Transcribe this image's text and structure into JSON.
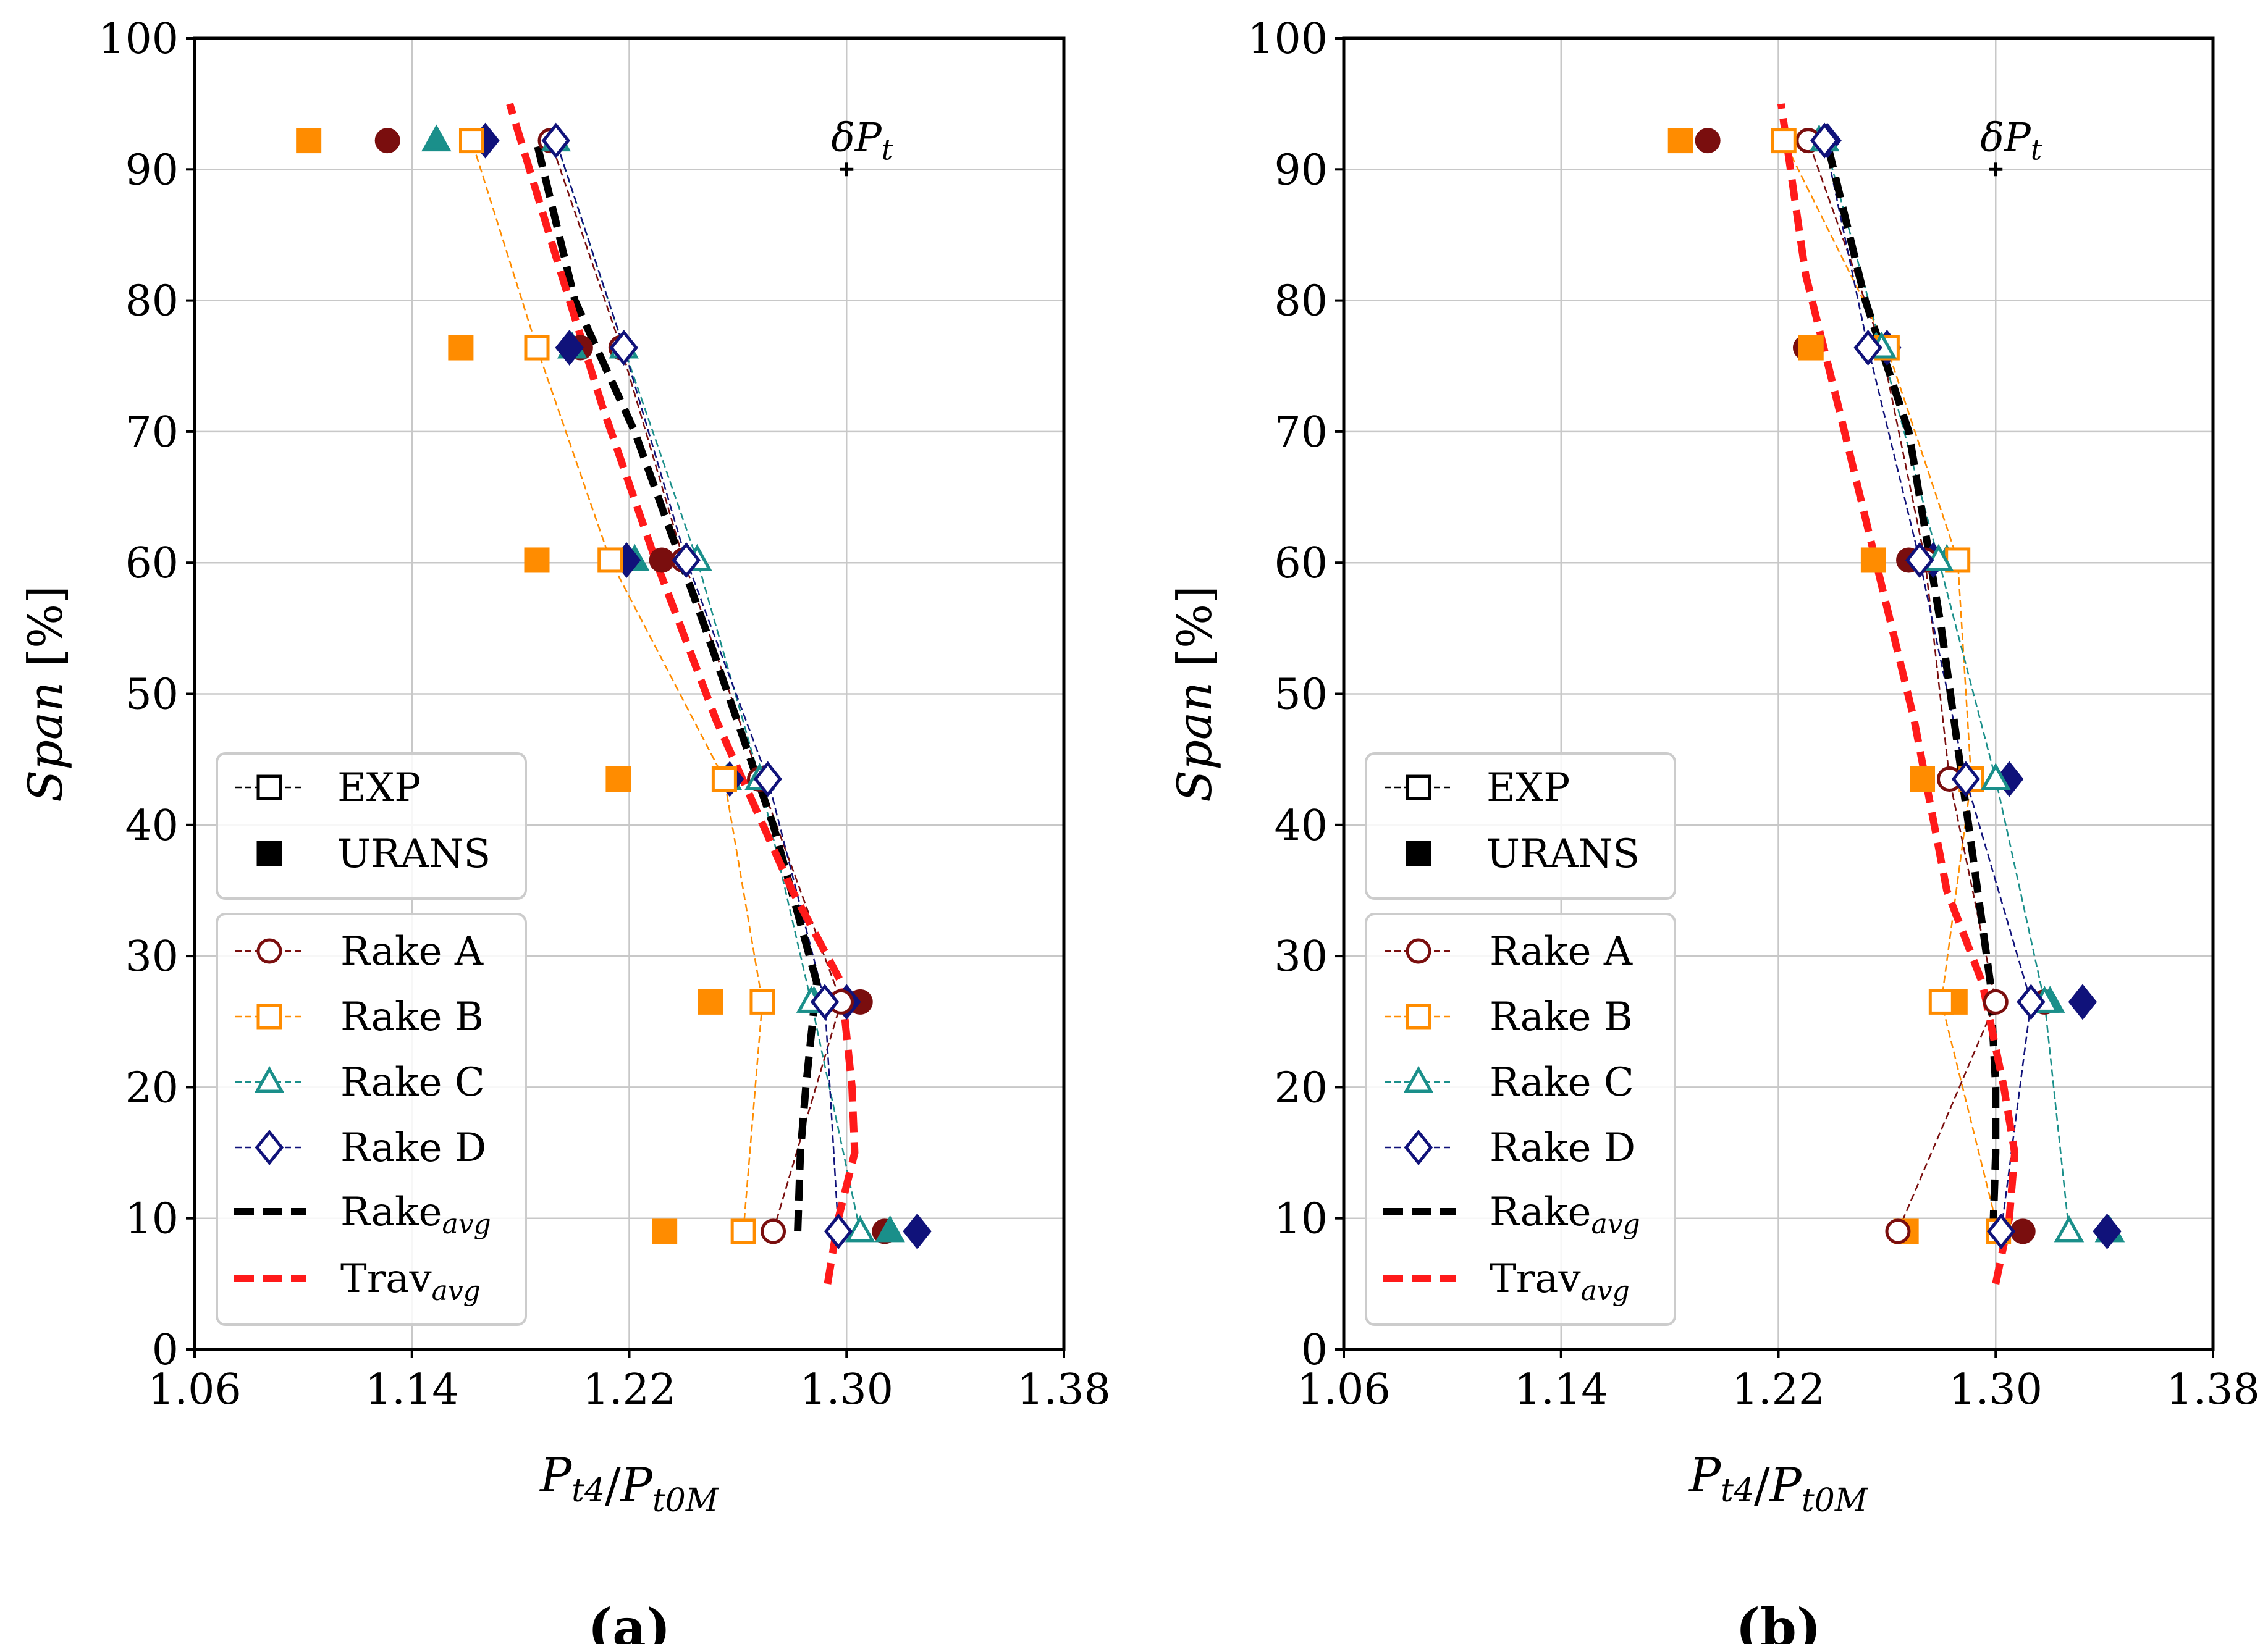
{
  "chart_data": [
    {
      "type": "scatter",
      "panel_label": "(a)",
      "xlabel": "P_t4/P_t0M",
      "ylabel": "Span [%]",
      "xlim": [
        1.06,
        1.38
      ],
      "ylim": [
        0,
        100
      ],
      "xticks": [
        1.06,
        1.14,
        1.22,
        1.3,
        1.38
      ],
      "xtick_labels": [
        "1.06",
        "1.14",
        "1.22",
        "1.30",
        "1.38"
      ],
      "yticks": [
        0,
        10,
        20,
        30,
        40,
        50,
        60,
        70,
        80,
        90,
        100
      ],
      "ytick_labels": [
        "0",
        "10",
        "20",
        "30",
        "40",
        "50",
        "60",
        "70",
        "80",
        "90",
        "100"
      ],
      "grid": true,
      "annotation": {
        "text": "δP_t",
        "x": 1.3,
        "y": 90
      },
      "spans": [
        9,
        26.5,
        43.5,
        60.2,
        76.4,
        92.2
      ],
      "exp": {
        "Rake A": [
          1.273,
          1.298,
          1.268,
          1.24,
          1.217,
          1.191
        ],
        "Rake B": [
          1.262,
          1.269,
          1.255,
          1.213,
          1.186,
          1.162
        ],
        "Rake C": [
          1.305,
          1.287,
          1.268,
          1.245,
          1.218,
          1.193
        ],
        "Rake D": [
          1.297,
          1.292,
          1.271,
          1.241,
          1.218,
          1.193
        ]
      },
      "urans": {
        "Rake A": [
          1.314,
          1.305,
          1.27,
          1.232,
          1.202,
          1.131
        ],
        "Rake B": [
          1.233,
          1.25,
          1.216,
          1.186,
          1.158,
          1.102
        ],
        "Rake C": [
          1.316,
          1.288,
          1.256,
          1.222,
          1.199,
          1.149
        ],
        "Rake D": [
          1.326,
          1.3,
          1.257,
          1.219,
          1.198,
          1.167
        ]
      },
      "rake_avg": {
        "x": [
          1.282,
          1.283,
          1.285,
          1.289,
          1.273,
          1.248,
          1.222,
          1.2,
          1.186
        ],
        "y": [
          9,
          15,
          20,
          28,
          40,
          55,
          70,
          80,
          92
        ]
      },
      "trav_avg": {
        "x": [
          1.293,
          1.297,
          1.303,
          1.302,
          1.298,
          1.28,
          1.252,
          1.23,
          1.21,
          1.195,
          1.176
        ],
        "y": [
          5,
          10,
          15,
          20,
          28,
          35,
          48,
          60,
          72,
          82,
          95
        ]
      },
      "legend_markers": [
        "EXP",
        "URANS"
      ],
      "legend_series": [
        "Rake A",
        "Rake B",
        "Rake C",
        "Rake D",
        "Rake",
        "Trav"
      ],
      "legend_subscript": "avg"
    },
    {
      "type": "scatter",
      "panel_label": "(b)",
      "xlabel": "P_t4/P_t0M",
      "ylabel": "Span [%]",
      "xlim": [
        1.06,
        1.38
      ],
      "ylim": [
        0,
        100
      ],
      "xticks": [
        1.06,
        1.14,
        1.22,
        1.3,
        1.38
      ],
      "xtick_labels": [
        "1.06",
        "1.14",
        "1.22",
        "1.30",
        "1.38"
      ],
      "yticks": [
        0,
        10,
        20,
        30,
        40,
        50,
        60,
        70,
        80,
        90,
        100
      ],
      "ytick_labels": [
        "0",
        "10",
        "20",
        "30",
        "40",
        "50",
        "60",
        "70",
        "80",
        "90",
        "100"
      ],
      "grid": true,
      "annotation": {
        "text": "δP_t",
        "x": 1.3,
        "y": 90
      },
      "spans": [
        9,
        26.5,
        43.5,
        60.2,
        76.4,
        92.2
      ],
      "exp": {
        "Rake A": [
          1.264,
          1.3,
          1.283,
          1.274,
          1.258,
          1.231
        ],
        "Rake B": [
          1.301,
          1.28,
          1.291,
          1.286,
          1.26,
          1.222
        ],
        "Rake C": [
          1.327,
          1.318,
          1.3,
          1.279,
          1.258,
          1.237
        ],
        "Rake D": [
          1.302,
          1.313,
          1.289,
          1.272,
          1.253,
          1.237
        ]
      },
      "urans": {
        "Rake A": [
          1.31,
          1.318,
          1.29,
          1.268,
          1.23,
          1.194
        ],
        "Rake B": [
          1.267,
          1.285,
          1.273,
          1.255,
          1.232,
          1.184
        ],
        "Rake C": [
          1.342,
          1.32,
          1.3,
          1.282,
          1.256,
          1.235
        ],
        "Rake D": [
          1.341,
          1.332,
          1.305,
          1.277,
          1.26,
          1.238
        ]
      },
      "rake_avg": {
        "x": [
          1.299,
          1.3,
          1.3,
          1.298,
          1.29,
          1.28,
          1.268,
          1.252,
          1.238
        ],
        "y": [
          9,
          15,
          20,
          28,
          40,
          55,
          70,
          80,
          92
        ]
      },
      "trav_avg": {
        "x": [
          1.3,
          1.305,
          1.307,
          1.303,
          1.295,
          1.282,
          1.27,
          1.256,
          1.242,
          1.23,
          1.221
        ],
        "y": [
          5,
          10,
          15,
          20,
          28,
          35,
          48,
          60,
          72,
          82,
          95
        ]
      },
      "legend_markers": [
        "EXP",
        "URANS"
      ],
      "legend_series": [
        "Rake A",
        "Rake B",
        "Rake C",
        "Rake D",
        "Rake",
        "Trav"
      ],
      "legend_subscript": "avg"
    }
  ],
  "colors": {
    "Rake A": "#7a0e0e",
    "Rake B": "#ff8c00",
    "Rake C": "#1a8f8a",
    "Rake D": "#10127a",
    "rake_avg": "#000000",
    "trav_avg": "#ff1a1a",
    "grid": "#c8c8c8"
  }
}
